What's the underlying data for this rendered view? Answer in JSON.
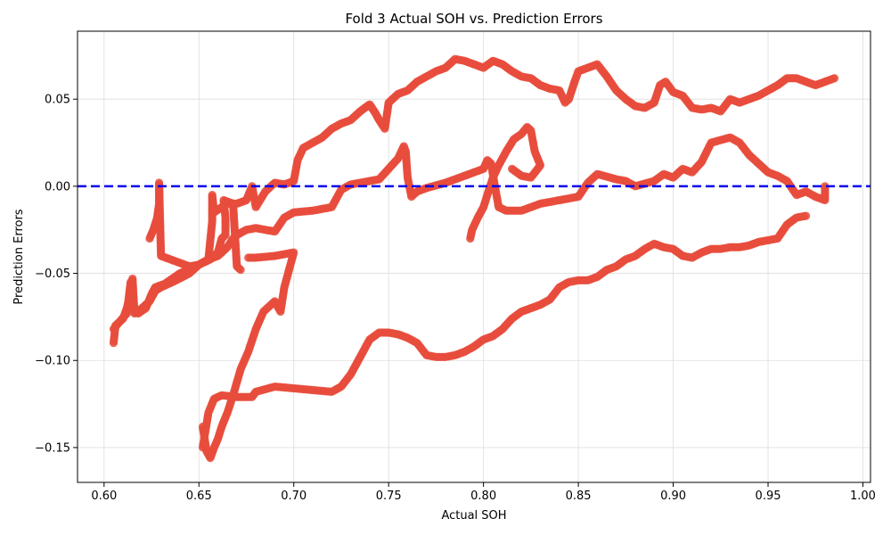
{
  "chart_data": {
    "type": "scatter",
    "title": "Fold 3 Actual SOH vs. Prediction Errors",
    "xlabel": "Actual SOH",
    "ylabel": "Prediction Errors",
    "xlim": [
      0.586,
      1.004
    ],
    "ylim": [
      -0.17,
      0.089
    ],
    "xticks": [
      0.6,
      0.65,
      0.7,
      0.75,
      0.8,
      0.85,
      0.9,
      0.95,
      1.0
    ],
    "xtick_labels": [
      "0.60",
      "0.65",
      "0.70",
      "0.75",
      "0.80",
      "0.85",
      "0.90",
      "0.95",
      "1.00"
    ],
    "yticks": [
      -0.15,
      -0.1,
      -0.05,
      0.0,
      0.05
    ],
    "ytick_labels": [
      "−0.15",
      "−0.10",
      "−0.05",
      "0.00",
      "0.05"
    ],
    "grid": true,
    "reference_line": {
      "y": 0.0,
      "style": "dashed",
      "color": "#0000ee"
    },
    "point_color": "#e74c3c",
    "series": [
      {
        "trace": [
          [
            0.605,
            -0.09
          ],
          [
            0.606,
            -0.08
          ],
          [
            0.61,
            -0.076
          ],
          [
            0.612,
            -0.07
          ],
          [
            0.614,
            -0.062
          ],
          [
            0.615,
            -0.053
          ],
          [
            0.616,
            -0.073
          ],
          [
            0.62,
            -0.07
          ],
          [
            0.624,
            -0.066
          ],
          [
            0.627,
            -0.06
          ],
          [
            0.63,
            -0.058
          ],
          [
            0.638,
            -0.054
          ],
          [
            0.645,
            -0.05
          ],
          [
            0.65,
            -0.045
          ],
          [
            0.655,
            -0.042
          ],
          [
            0.66,
            -0.04
          ],
          [
            0.665,
            -0.035
          ],
          [
            0.668,
            -0.03
          ],
          [
            0.67,
            -0.028
          ],
          [
            0.675,
            -0.025
          ],
          [
            0.68,
            -0.024
          ],
          [
            0.69,
            -0.026
          ],
          [
            0.695,
            -0.018
          ],
          [
            0.7,
            -0.015
          ],
          [
            0.71,
            -0.014
          ],
          [
            0.72,
            -0.012
          ],
          [
            0.725,
            -0.002
          ],
          [
            0.73,
            0.001
          ],
          [
            0.74,
            0.003
          ],
          [
            0.745,
            0.004
          ],
          [
            0.75,
            0.01
          ],
          [
            0.755,
            0.016
          ],
          [
            0.758,
            0.023
          ],
          [
            0.759,
            0.02
          ],
          [
            0.76,
            0.005
          ],
          [
            0.762,
            -0.006
          ],
          [
            0.765,
            -0.003
          ],
          [
            0.77,
            -0.001
          ],
          [
            0.78,
            0.002
          ],
          [
            0.79,
            0.006
          ],
          [
            0.8,
            0.01
          ],
          [
            0.802,
            0.015
          ],
          [
            0.804,
            0.013
          ],
          [
            0.806,
            0.0
          ],
          [
            0.808,
            -0.012
          ],
          [
            0.812,
            -0.014
          ],
          [
            0.82,
            -0.014
          ],
          [
            0.83,
            -0.01
          ],
          [
            0.84,
            -0.008
          ],
          [
            0.85,
            -0.006
          ],
          [
            0.855,
            0.002
          ],
          [
            0.86,
            0.007
          ],
          [
            0.87,
            0.004
          ],
          [
            0.875,
            0.003
          ],
          [
            0.88,
            0.0
          ],
          [
            0.89,
            0.003
          ],
          [
            0.895,
            0.007
          ],
          [
            0.9,
            0.005
          ],
          [
            0.905,
            0.01
          ],
          [
            0.91,
            0.008
          ],
          [
            0.915,
            0.014
          ],
          [
            0.92,
            0.025
          ],
          [
            0.93,
            0.028
          ],
          [
            0.935,
            0.025
          ],
          [
            0.94,
            0.018
          ],
          [
            0.945,
            0.013
          ],
          [
            0.95,
            0.008
          ],
          [
            0.955,
            0.006
          ],
          [
            0.96,
            0.003
          ],
          [
            0.965,
            -0.005
          ],
          [
            0.97,
            -0.003
          ],
          [
            0.975,
            -0.006
          ],
          [
            0.98,
            -0.008
          ],
          [
            0.98,
            0.0
          ]
        ]
      },
      {
        "trace": [
          [
            0.605,
            -0.082
          ],
          [
            0.608,
            -0.078
          ],
          [
            0.612,
            -0.073
          ],
          [
            0.614,
            -0.055
          ],
          [
            0.616,
            -0.072
          ],
          [
            0.618,
            -0.073
          ],
          [
            0.622,
            -0.07
          ],
          [
            0.625,
            -0.062
          ],
          [
            0.627,
            -0.058
          ],
          [
            0.632,
            -0.056
          ],
          [
            0.64,
            -0.05
          ],
          [
            0.65,
            -0.045
          ],
          [
            0.656,
            -0.042
          ],
          [
            0.66,
            -0.038
          ],
          [
            0.662,
            -0.03
          ],
          [
            0.664,
            -0.028
          ],
          [
            0.664,
            -0.018
          ],
          [
            0.663,
            -0.008
          ],
          [
            0.668,
            -0.01
          ],
          [
            0.67,
            -0.046
          ],
          [
            0.672,
            -0.048
          ]
        ]
      },
      {
        "trace": [
          [
            0.624,
            -0.03
          ],
          [
            0.626,
            -0.025
          ],
          [
            0.628,
            -0.018
          ],
          [
            0.629,
            -0.01
          ],
          [
            0.629,
            -0.002
          ],
          [
            0.629,
            0.002
          ],
          [
            0.63,
            -0.04
          ],
          [
            0.635,
            -0.042
          ],
          [
            0.64,
            -0.044
          ],
          [
            0.645,
            -0.046
          ],
          [
            0.65,
            -0.045
          ],
          [
            0.655,
            -0.042
          ],
          [
            0.657,
            -0.02
          ],
          [
            0.657,
            -0.005
          ],
          [
            0.658,
            -0.015
          ],
          [
            0.662,
            -0.012
          ],
          [
            0.665,
            -0.01
          ],
          [
            0.67,
            -0.01
          ],
          [
            0.675,
            -0.008
          ],
          [
            0.678,
            0.0
          ],
          [
            0.68,
            -0.012
          ],
          [
            0.685,
            -0.003
          ],
          [
            0.69,
            0.002
          ],
          [
            0.695,
            0.001
          ],
          [
            0.7,
            0.003
          ],
          [
            0.702,
            0.015
          ],
          [
            0.705,
            0.022
          ],
          [
            0.71,
            0.025
          ],
          [
            0.715,
            0.028
          ],
          [
            0.72,
            0.033
          ],
          [
            0.725,
            0.036
          ],
          [
            0.73,
            0.038
          ],
          [
            0.735,
            0.043
          ],
          [
            0.74,
            0.047
          ],
          [
            0.743,
            0.042
          ],
          [
            0.745,
            0.038
          ],
          [
            0.748,
            0.033
          ],
          [
            0.75,
            0.048
          ],
          [
            0.755,
            0.053
          ],
          [
            0.76,
            0.055
          ],
          [
            0.765,
            0.06
          ],
          [
            0.77,
            0.063
          ],
          [
            0.775,
            0.066
          ],
          [
            0.78,
            0.068
          ],
          [
            0.785,
            0.073
          ],
          [
            0.79,
            0.072
          ],
          [
            0.795,
            0.07
          ],
          [
            0.8,
            0.068
          ],
          [
            0.805,
            0.072
          ],
          [
            0.81,
            0.07
          ],
          [
            0.815,
            0.066
          ],
          [
            0.82,
            0.063
          ],
          [
            0.825,
            0.062
          ],
          [
            0.83,
            0.058
          ],
          [
            0.835,
            0.056
          ],
          [
            0.84,
            0.055
          ],
          [
            0.843,
            0.048
          ],
          [
            0.845,
            0.05
          ],
          [
            0.848,
            0.06
          ],
          [
            0.85,
            0.066
          ],
          [
            0.855,
            0.068
          ],
          [
            0.86,
            0.07
          ],
          [
            0.865,
            0.063
          ],
          [
            0.87,
            0.055
          ],
          [
            0.875,
            0.05
          ],
          [
            0.88,
            0.046
          ],
          [
            0.885,
            0.045
          ],
          [
            0.89,
            0.048
          ],
          [
            0.893,
            0.058
          ],
          [
            0.896,
            0.06
          ],
          [
            0.9,
            0.054
          ],
          [
            0.905,
            0.052
          ],
          [
            0.91,
            0.045
          ],
          [
            0.915,
            0.044
          ],
          [
            0.92,
            0.045
          ],
          [
            0.925,
            0.043
          ],
          [
            0.93,
            0.05
          ],
          [
            0.935,
            0.048
          ],
          [
            0.94,
            0.05
          ],
          [
            0.945,
            0.052
          ],
          [
            0.95,
            0.055
          ],
          [
            0.955,
            0.058
          ],
          [
            0.96,
            0.062
          ],
          [
            0.965,
            0.062
          ],
          [
            0.97,
            0.06
          ],
          [
            0.975,
            0.058
          ],
          [
            0.98,
            0.06
          ],
          [
            0.985,
            0.062
          ]
        ]
      },
      {
        "trace": [
          [
            0.652,
            -0.138
          ],
          [
            0.654,
            -0.152
          ],
          [
            0.656,
            -0.156
          ],
          [
            0.658,
            -0.15
          ],
          [
            0.66,
            -0.145
          ],
          [
            0.662,
            -0.138
          ],
          [
            0.665,
            -0.13
          ],
          [
            0.668,
            -0.12
          ],
          [
            0.672,
            -0.105
          ],
          [
            0.676,
            -0.095
          ],
          [
            0.68,
            -0.082
          ],
          [
            0.684,
            -0.072
          ],
          [
            0.688,
            -0.068
          ],
          [
            0.69,
            -0.066
          ],
          [
            0.693,
            -0.072
          ],
          [
            0.695,
            -0.058
          ],
          [
            0.697,
            -0.05
          ],
          [
            0.699,
            -0.042
          ],
          [
            0.7,
            -0.038
          ],
          [
            0.695,
            -0.039
          ],
          [
            0.69,
            -0.04
          ],
          [
            0.68,
            -0.041
          ],
          [
            0.676,
            -0.041
          ]
        ]
      },
      {
        "trace": [
          [
            0.652,
            -0.15
          ],
          [
            0.655,
            -0.13
          ],
          [
            0.658,
            -0.122
          ],
          [
            0.662,
            -0.12
          ],
          [
            0.67,
            -0.121
          ],
          [
            0.678,
            -0.121
          ],
          [
            0.68,
            -0.118
          ],
          [
            0.69,
            -0.115
          ],
          [
            0.7,
            -0.116
          ],
          [
            0.71,
            -0.117
          ],
          [
            0.72,
            -0.118
          ],
          [
            0.725,
            -0.115
          ],
          [
            0.73,
            -0.108
          ],
          [
            0.735,
            -0.098
          ],
          [
            0.74,
            -0.088
          ],
          [
            0.745,
            -0.084
          ],
          [
            0.75,
            -0.084
          ],
          [
            0.755,
            -0.085
          ],
          [
            0.76,
            -0.087
          ],
          [
            0.765,
            -0.09
          ],
          [
            0.77,
            -0.097
          ],
          [
            0.775,
            -0.098
          ],
          [
            0.78,
            -0.098
          ],
          [
            0.785,
            -0.097
          ],
          [
            0.79,
            -0.095
          ],
          [
            0.795,
            -0.092
          ],
          [
            0.8,
            -0.088
          ],
          [
            0.805,
            -0.086
          ],
          [
            0.81,
            -0.082
          ],
          [
            0.815,
            -0.076
          ],
          [
            0.82,
            -0.072
          ],
          [
            0.825,
            -0.07
          ],
          [
            0.83,
            -0.068
          ],
          [
            0.835,
            -0.065
          ],
          [
            0.84,
            -0.058
          ],
          [
            0.845,
            -0.055
          ],
          [
            0.85,
            -0.054
          ],
          [
            0.855,
            -0.054
          ],
          [
            0.86,
            -0.052
          ],
          [
            0.865,
            -0.048
          ],
          [
            0.87,
            -0.046
          ],
          [
            0.875,
            -0.042
          ],
          [
            0.88,
            -0.04
          ],
          [
            0.885,
            -0.036
          ],
          [
            0.89,
            -0.033
          ],
          [
            0.895,
            -0.035
          ],
          [
            0.9,
            -0.036
          ],
          [
            0.905,
            -0.04
          ],
          [
            0.91,
            -0.041
          ],
          [
            0.915,
            -0.038
          ],
          [
            0.92,
            -0.036
          ],
          [
            0.925,
            -0.036
          ],
          [
            0.93,
            -0.035
          ],
          [
            0.935,
            -0.035
          ],
          [
            0.94,
            -0.034
          ],
          [
            0.945,
            -0.032
          ],
          [
            0.95,
            -0.031
          ],
          [
            0.955,
            -0.03
          ],
          [
            0.96,
            -0.022
          ],
          [
            0.965,
            -0.018
          ],
          [
            0.97,
            -0.017
          ]
        ]
      },
      {
        "trace": [
          [
            0.793,
            -0.03
          ],
          [
            0.794,
            -0.025
          ],
          [
            0.797,
            -0.018
          ],
          [
            0.8,
            -0.012
          ],
          [
            0.802,
            -0.005
          ],
          [
            0.805,
            0.005
          ],
          [
            0.808,
            0.012
          ],
          [
            0.812,
            0.02
          ],
          [
            0.816,
            0.027
          ],
          [
            0.82,
            0.03
          ],
          [
            0.823,
            0.034
          ],
          [
            0.825,
            0.032
          ],
          [
            0.827,
            0.02
          ],
          [
            0.83,
            0.012
          ],
          [
            0.825,
            0.005
          ],
          [
            0.82,
            0.006
          ],
          [
            0.815,
            0.01
          ]
        ]
      }
    ]
  }
}
